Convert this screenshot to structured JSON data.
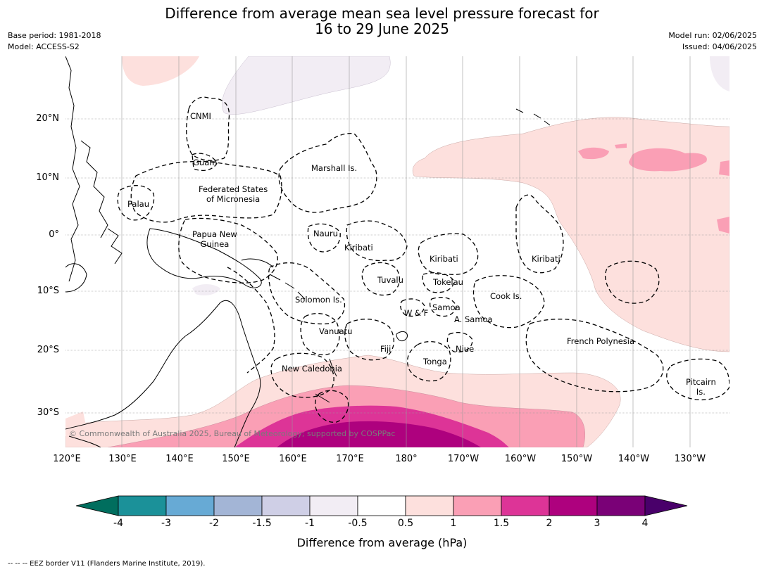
{
  "header": {
    "title_line1": "Difference from average mean sea level pressure forecast for",
    "title_line2": "16 to 29 June 2025",
    "base_period": "Base period: 1981-2018",
    "model": "Model: ACCESS-S2",
    "model_run": "Model run: 02/06/2025",
    "issued": "Issued: 04/06/2025"
  },
  "map": {
    "lat_labels": [
      "20°N",
      "10°N",
      "0°",
      "10°S",
      "20°S",
      "30°S"
    ],
    "lon_labels": [
      "120°E",
      "130°E",
      "140°E",
      "150°E",
      "160°E",
      "170°E",
      "180°",
      "170°W",
      "160°W",
      "150°W",
      "140°W",
      "130°W"
    ],
    "copyright": "© Commonwealth of Australia 2025, Bureau of Meteorology; supported by COSPPac",
    "places": {
      "cnmi": "CNMI",
      "guam": "Guam",
      "marshall": "Marshall Is.",
      "fsm_1": "Federated States",
      "fsm_2": "of Micronesia",
      "palau": "Palau",
      "png_1": "Papua New",
      "png_2": "Guinea",
      "nauru": "Nauru",
      "kiribati_w": "Kiribati",
      "kiribati_c": "Kiribati",
      "kiribati_e": "Kiribati",
      "tuvalu": "Tuvalu",
      "tokelau": "Tokelau",
      "solomon": "Solomon Is.",
      "cook": "Cook Is.",
      "samoa": "Samoa",
      "wf": "W & F",
      "asamoa": "A. Samoa",
      "vanuatu": "Vanuatu",
      "fiji": "Fiji",
      "niue": "Niue",
      "tonga": "Tonga",
      "frenchpoly": "French Polynesia",
      "newcal": "New Caledonia",
      "pitcairn_1": "Pitcairn",
      "pitcairn_2": "Is."
    }
  },
  "colorbar": {
    "title": "Difference from average (hPa)",
    "ticks": [
      "-4",
      "-3",
      "-2",
      "-1.5",
      "-1",
      "-0.5",
      "0.5",
      "1",
      "1.5",
      "2",
      "3",
      "4"
    ],
    "colors": [
      "#006e5e",
      "#1b9199",
      "#67aad5",
      "#a3b5d6",
      "#cfcfe6",
      "#f2edf4",
      "#ffffff",
      "#fde0dd",
      "#fa9fb5",
      "#dd3497",
      "#ae017e",
      "#7a0177",
      "#49006a"
    ]
  },
  "footnote": "--  --  -- EEZ border V11 (Flanders Marine Institute, 2019)."
}
